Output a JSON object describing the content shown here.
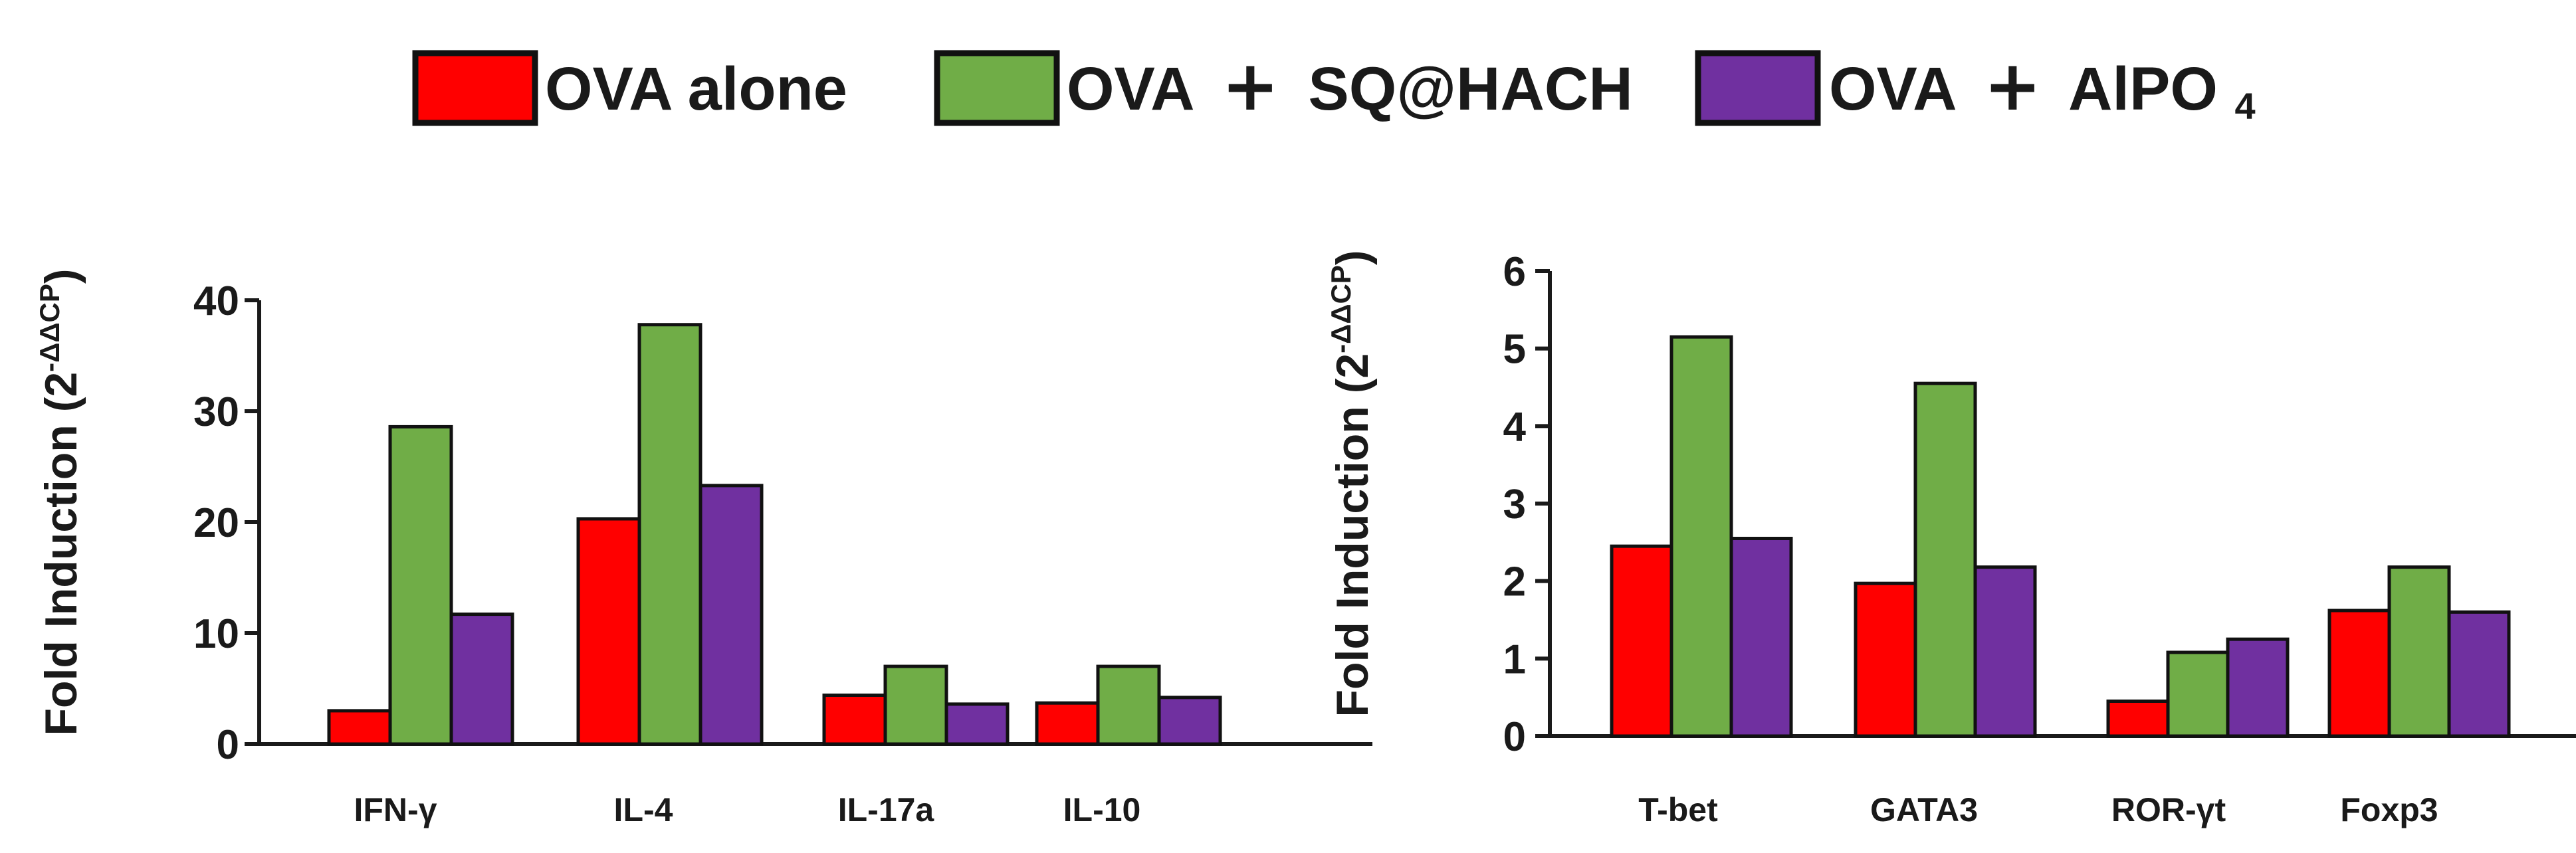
{
  "legend": {
    "entries": [
      {
        "name": "OVA  alone",
        "color": "#ff0000"
      },
      {
        "name": "OVA + SQ@HACH",
        "color": "#70ad47"
      },
      {
        "name": "OVA + AlPO4",
        "color": "#7030a0"
      }
    ],
    "labels": {
      "alone": {
        "prefix": "OVA  alone"
      },
      "sq": {
        "prefix": "OVA",
        "plus": "+",
        "rest": "SQ@HACH"
      },
      "alpo": {
        "prefix": "OVA",
        "plus": "+",
        "rest": "AlPO",
        "sub": "4"
      }
    }
  },
  "chart_data": [
    {
      "type": "bar",
      "title": "",
      "ylabel": "Fold Induction (2",
      "ylabel_sup": "-ΔΔCP",
      "ylabel_close": ")",
      "xlabel": "",
      "ylim": [
        0,
        40
      ],
      "yticks": [
        0,
        10,
        20,
        30,
        40
      ],
      "ytick_labels": [
        "0",
        "10",
        "20",
        "30",
        "40"
      ],
      "categories": [
        "IFN-γ",
        "IL-4",
        "IL-17a",
        "IL-10"
      ],
      "series": [
        {
          "name": "OVA  alone",
          "color": "#ff0000",
          "values": [
            3.0,
            20.3,
            4.4,
            3.7
          ]
        },
        {
          "name": "OVA + SQ@HACH",
          "color": "#70ad47",
          "values": [
            28.6,
            37.8,
            7.0,
            7.0
          ]
        },
        {
          "name": "OVA + AlPO4",
          "color": "#7030a0",
          "values": [
            11.7,
            23.3,
            3.6,
            4.2
          ]
        }
      ]
    },
    {
      "type": "bar",
      "title": "",
      "ylabel": "Fold Induction (2",
      "ylabel_sup": "-ΔΔCP",
      "ylabel_close": ")",
      "xlabel": "",
      "ylim": [
        0,
        6
      ],
      "yticks": [
        0,
        1,
        2,
        3,
        4,
        5,
        6
      ],
      "ytick_labels": [
        "0",
        "1",
        "2",
        "3",
        "4",
        "5",
        "6"
      ],
      "categories": [
        "T-bet",
        "GATA3",
        "ROR-γt",
        "Foxp3"
      ],
      "series": [
        {
          "name": "OVA  alone",
          "color": "#ff0000",
          "values": [
            2.45,
            1.97,
            0.45,
            1.62
          ]
        },
        {
          "name": "OVA + SQ@HACH",
          "color": "#70ad47",
          "values": [
            5.15,
            4.55,
            1.08,
            2.18
          ]
        },
        {
          "name": "OVA + AlPO4",
          "color": "#7030a0",
          "values": [
            2.55,
            2.18,
            1.25,
            1.6
          ]
        }
      ]
    }
  ]
}
